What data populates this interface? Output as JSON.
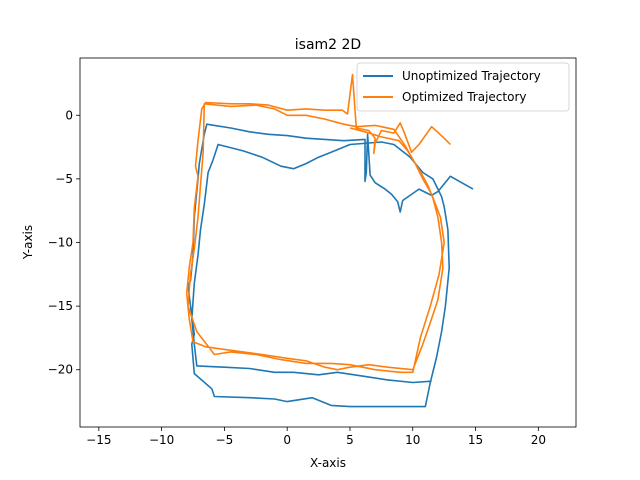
{
  "chart_data": {
    "type": "line",
    "title": "isam2 2D",
    "xlabel": "X-axis",
    "ylabel": "Y-axis",
    "xlim": [
      -16.5,
      23
    ],
    "ylim": [
      -24.5,
      4.5
    ],
    "xticks": [
      -15,
      -10,
      -5,
      0,
      5,
      10,
      15,
      20
    ],
    "yticks": [
      0,
      -5,
      -10,
      -15,
      -20
    ],
    "grid": false,
    "legend_position": "top-right",
    "series": [
      {
        "name": "Unoptimized Trajectory",
        "color": "#1f77b4",
        "points": [
          [
            14.8,
            -5.8
          ],
          [
            13.0,
            -4.8
          ],
          [
            12.0,
            -6.0
          ],
          [
            11.5,
            -6.3
          ],
          [
            10.5,
            -5.8
          ],
          [
            9.2,
            -6.7
          ],
          [
            9.0,
            -7.6
          ],
          [
            8.8,
            -6.8
          ],
          [
            8.3,
            -6.2
          ],
          [
            7.8,
            -5.8
          ],
          [
            7.0,
            -5.3
          ],
          [
            6.6,
            -4.7
          ],
          [
            6.4,
            -1.5
          ],
          [
            6.3,
            -4.5
          ],
          [
            6.2,
            -5.2
          ],
          [
            6.2,
            -1.9
          ],
          [
            4.5,
            -2.0
          ],
          [
            3.0,
            -1.9
          ],
          [
            1.5,
            -1.8
          ],
          [
            0.0,
            -1.6
          ],
          [
            -1.5,
            -1.5
          ],
          [
            -3.0,
            -1.3
          ],
          [
            -4.5,
            -1.0
          ],
          [
            -5.8,
            -0.8
          ],
          [
            -6.4,
            -0.7
          ],
          [
            -6.6,
            -1.5
          ],
          [
            -7.0,
            -3.8
          ],
          [
            -7.1,
            -5.0
          ],
          [
            -7.4,
            -8.0
          ],
          [
            -7.5,
            -11.0
          ],
          [
            -7.7,
            -13.0
          ],
          [
            -7.9,
            -13.4
          ],
          [
            -7.6,
            -15.8
          ],
          [
            -7.4,
            -17.2
          ],
          [
            -7.6,
            -18.0
          ],
          [
            -7.4,
            -20.3
          ],
          [
            -6.0,
            -21.5
          ],
          [
            -5.8,
            -22.1
          ],
          [
            -3.0,
            -22.2
          ],
          [
            -1.0,
            -22.3
          ],
          [
            0.0,
            -22.5
          ],
          [
            2.0,
            -22.2
          ],
          [
            3.5,
            -22.8
          ],
          [
            5.0,
            -22.9
          ],
          [
            7.0,
            -22.9
          ],
          [
            9.0,
            -22.9
          ],
          [
            11.0,
            -22.9
          ],
          [
            11.4,
            -21.0
          ],
          [
            11.9,
            -19.0
          ],
          [
            12.3,
            -17.0
          ],
          [
            12.6,
            -15.0
          ],
          [
            12.9,
            -12.0
          ],
          [
            12.8,
            -9.0
          ],
          [
            12.5,
            -7.2
          ],
          [
            12.3,
            -6.4
          ],
          [
            12.0,
            -5.8
          ],
          [
            11.6,
            -5.0
          ],
          [
            10.8,
            -4.5
          ],
          [
            9.8,
            -3.3
          ],
          [
            8.5,
            -2.3
          ],
          [
            7.5,
            -2.1
          ],
          [
            5.0,
            -2.3
          ],
          [
            3.5,
            -2.9
          ],
          [
            2.5,
            -3.3
          ],
          [
            1.5,
            -3.8
          ],
          [
            0.5,
            -4.2
          ],
          [
            -0.5,
            -4.0
          ],
          [
            -2.0,
            -3.3
          ],
          [
            -3.5,
            -2.8
          ],
          [
            -5.5,
            -2.3
          ],
          [
            -5.9,
            -3.5
          ],
          [
            -6.3,
            -4.5
          ],
          [
            -6.6,
            -7.0
          ],
          [
            -6.9,
            -9.0
          ],
          [
            -7.1,
            -11.0
          ],
          [
            -7.4,
            -13.2
          ],
          [
            -7.6,
            -16.0
          ],
          [
            -7.4,
            -18.0
          ],
          [
            -7.2,
            -19.7
          ],
          [
            -5.0,
            -19.8
          ],
          [
            -3.0,
            -19.9
          ],
          [
            -1.0,
            -20.2
          ],
          [
            0.5,
            -20.2
          ],
          [
            2.5,
            -20.4
          ],
          [
            4.0,
            -20.2
          ],
          [
            6.0,
            -20.5
          ],
          [
            8.0,
            -20.8
          ],
          [
            10.0,
            -21.0
          ],
          [
            11.5,
            -20.9
          ]
        ]
      },
      {
        "name": "Optimized Trajectory",
        "color": "#ff7f0e",
        "points": [
          [
            13.0,
            -2.3
          ],
          [
            12.5,
            -1.8
          ],
          [
            11.5,
            -0.9
          ],
          [
            11.0,
            -1.6
          ],
          [
            10.5,
            -2.3
          ],
          [
            9.9,
            -2.9
          ],
          [
            9.3,
            -1.3
          ],
          [
            9.0,
            -0.6
          ],
          [
            8.5,
            -1.4
          ],
          [
            7.5,
            -1.2
          ],
          [
            7.0,
            -2.2
          ],
          [
            6.9,
            -3.0
          ],
          [
            7.0,
            -1.8
          ],
          [
            6.5,
            -1.2
          ],
          [
            5.5,
            -1.0
          ],
          [
            5.2,
            3.2
          ],
          [
            4.8,
            0.1
          ],
          [
            4.4,
            0.4
          ],
          [
            3.0,
            0.4
          ],
          [
            1.5,
            0.5
          ],
          [
            0.0,
            0.4
          ],
          [
            -1.5,
            0.8
          ],
          [
            -3.0,
            0.9
          ],
          [
            -4.5,
            0.9
          ],
          [
            -6.5,
            1.0
          ],
          [
            -6.8,
            0.5
          ],
          [
            -7.1,
            -2.0
          ],
          [
            -7.3,
            -4.0
          ],
          [
            -7.1,
            -4.8
          ],
          [
            -7.4,
            -7.3
          ],
          [
            -7.5,
            -10.0
          ],
          [
            -7.8,
            -12.0
          ],
          [
            -8.0,
            -14.0
          ],
          [
            -7.8,
            -16.0
          ],
          [
            -7.5,
            -17.8
          ],
          [
            -6.5,
            -18.2
          ],
          [
            -5.0,
            -18.4
          ],
          [
            -3.5,
            -18.6
          ],
          [
            -2.0,
            -18.8
          ],
          [
            0.0,
            -19.1
          ],
          [
            1.5,
            -19.3
          ],
          [
            3.0,
            -19.8
          ],
          [
            4.0,
            -20.0
          ],
          [
            5.0,
            -19.8
          ],
          [
            6.5,
            -19.6
          ],
          [
            8.0,
            -19.8
          ],
          [
            10.0,
            -20.0
          ],
          [
            10.8,
            -18.0
          ],
          [
            11.5,
            -16.0
          ],
          [
            12.0,
            -14.5
          ],
          [
            12.4,
            -12.0
          ],
          [
            12.3,
            -10.0
          ],
          [
            12.0,
            -8.0
          ],
          [
            11.6,
            -6.5
          ],
          [
            11.2,
            -5.5
          ],
          [
            10.7,
            -4.6
          ],
          [
            10.2,
            -3.8
          ],
          [
            9.4,
            -2.4
          ],
          [
            8.5,
            -1.1
          ],
          [
            7.0,
            -0.8
          ],
          [
            5.5,
            -0.9
          ],
          [
            4.5,
            -0.7
          ],
          [
            3.0,
            -0.3
          ],
          [
            1.5,
            0.0
          ],
          [
            0.0,
            0.0
          ],
          [
            -1.0,
            0.5
          ],
          [
            -2.5,
            0.8
          ],
          [
            -4.5,
            0.7
          ],
          [
            -6.6,
            0.9
          ],
          [
            -6.7,
            -3.0
          ],
          [
            -6.9,
            -5.5
          ],
          [
            -7.1,
            -8.0
          ],
          [
            -7.4,
            -10.5
          ],
          [
            -7.7,
            -12.5
          ],
          [
            -7.9,
            -15.0
          ],
          [
            -7.2,
            -17.0
          ],
          [
            -5.8,
            -18.8
          ],
          [
            -4.5,
            -18.6
          ],
          [
            -2.5,
            -18.8
          ],
          [
            -0.5,
            -19.2
          ],
          [
            1.5,
            -19.5
          ],
          [
            3.5,
            -19.5
          ],
          [
            5.0,
            -19.6
          ],
          [
            7.0,
            -20.0
          ],
          [
            9.0,
            -20.2
          ],
          [
            10.0,
            -20.2
          ],
          [
            10.6,
            -17.5
          ],
          [
            11.4,
            -15.0
          ],
          [
            12.1,
            -12.5
          ],
          [
            12.5,
            -10.0
          ],
          [
            12.2,
            -8.0
          ],
          [
            11.5,
            -6.2
          ],
          [
            10.8,
            -5.0
          ],
          [
            10.2,
            -3.8
          ],
          [
            9.6,
            -2.8
          ],
          [
            8.9,
            -2.0
          ],
          [
            7.5,
            -1.7
          ],
          [
            6.2,
            -1.3
          ],
          [
            5.0,
            -1.0
          ]
        ]
      }
    ]
  }
}
